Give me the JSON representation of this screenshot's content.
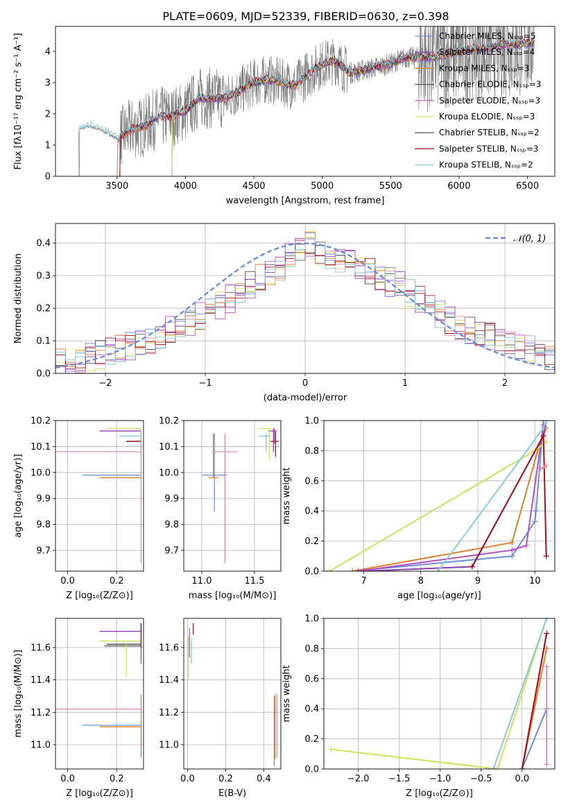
{
  "figure_title": "PLATE=0609, MJD=52339, FIBERID=0630, z=0.398",
  "colors": {
    "chabrier_miles": "#6b8fd6",
    "salpeter_miles": "#8a3fae",
    "kroupa_miles": "#e07e27",
    "chabrier_elodie": "#555555",
    "salpeter_elodie": "#b04fc0",
    "kroupa_elodie": "#cfe05a",
    "chabrier_stelib": "#3a3a3a",
    "salpeter_stelib": "#a0101a",
    "kroupa_stelib": "#86c9d8",
    "data": "#808080",
    "normal_curve": "#6a8fd8",
    "grid": "#b0b0b0"
  },
  "chart_data": [
    {
      "id": "spectrum",
      "type": "line",
      "title": "PLATE=0609, MJD=52339, FIBERID=0630, z=0.398",
      "xlabel": "wavelength [Angstrom, rest frame]",
      "ylabel": "Flux [fλ10⁻¹⁷ erg cm⁻² s⁻¹ A⁻¹]",
      "xlim": [
        3050,
        6700
      ],
      "ylim": [
        0,
        4.8
      ],
      "xticks": [
        3500,
        4000,
        4500,
        5000,
        5500,
        6000,
        6500
      ],
      "yticks": [
        0,
        1,
        2,
        3,
        4
      ],
      "grid": false,
      "legend_position": "top-right",
      "legend": [
        "Chabrier MILES, Nₛₛₚ=5",
        "Salpeter MILES, Nₛₛₚ=4",
        "Kroupa MILES, Nₛₛₚ=3",
        "Chabrier ELODIE, Nₛₛₚ=3",
        "Salpeter ELODIE, Nₛₛₚ=3",
        "Kroupa ELODIE, Nₛₛₚ=3",
        "Chabrier STELIB, Nₛₛₚ=2",
        "Salpeter STELIB, Nₛₛₚ=3",
        "Kroupa STELIB, Nₛₛₚ=2"
      ],
      "continuum": {
        "x": [
          3220,
          3300,
          3400,
          3500,
          3600,
          3700,
          3800,
          3900,
          4000,
          4100,
          4200,
          4300,
          4400,
          4500,
          4600,
          4700,
          4800,
          4900,
          5000,
          5100,
          5200,
          5300,
          5400,
          5500,
          5600,
          5700,
          5800,
          5900,
          6000,
          6100,
          6200,
          6300,
          6400,
          6550
        ],
        "y": [
          1.5,
          1.6,
          1.45,
          1.2,
          1.5,
          1.6,
          1.9,
          1.9,
          2.1,
          2.5,
          2.5,
          2.5,
          2.75,
          3.0,
          3.1,
          3.0,
          2.9,
          3.3,
          3.6,
          3.7,
          3.3,
          3.4,
          3.5,
          3.6,
          3.8,
          3.8,
          3.8,
          3.9,
          4.0,
          4.1,
          4.1,
          4.2,
          4.2,
          4.3
        ]
      },
      "data_range": [
        3220,
        6550
      ]
    },
    {
      "id": "residuals",
      "type": "line",
      "xlabel": "(data-model)/error",
      "ylabel": "Normed distribution",
      "xlim": [
        -2.5,
        2.5
      ],
      "ylim": [
        0,
        0.46
      ],
      "xticks": [
        -2,
        -1,
        0,
        1,
        2
      ],
      "yticks": [
        0.0,
        0.1,
        0.2,
        0.3,
        0.4
      ],
      "grid": true,
      "legend_position": "top-right",
      "legend": [
        "𝒩(0, 1)"
      ],
      "normal": {
        "mean": 0,
        "sigma": 1
      },
      "hist_envelope": {
        "x": [
          -2.5,
          -2.0,
          -1.5,
          -1.0,
          -0.5,
          -0.25,
          0.0,
          0.25,
          0.5,
          1.0,
          1.5,
          2.0,
          2.5
        ],
        "y": [
          0.03,
          0.06,
          0.11,
          0.18,
          0.28,
          0.33,
          0.4,
          0.36,
          0.33,
          0.26,
          0.15,
          0.1,
          0.05
        ]
      }
    },
    {
      "id": "age-vs-Z",
      "type": "scatter",
      "xlabel": "Z [log₁₀(Z/Z⊙)]",
      "ylabel": "age  [log₁₀(age/yr)]",
      "xlim": [
        -0.05,
        0.31
      ],
      "ylim": [
        9.62,
        10.2
      ],
      "xticks": [
        0.0,
        0.2
      ],
      "yticks": [
        9.7,
        9.8,
        9.9,
        10.0,
        10.1,
        10.2
      ],
      "grid": true,
      "points": [
        {
          "series": 0,
          "x": 0.3,
          "y": 9.99,
          "xerr": [
            0.24,
            0.0
          ],
          "yerr": [
            0.0,
            0.0
          ]
        },
        {
          "series": 1,
          "x": 0.3,
          "y": 10.16,
          "xerr": [
            0.17,
            0.0
          ],
          "yerr": [
            0.03,
            0.0
          ]
        },
        {
          "series": 2,
          "x": 0.3,
          "y": 9.98,
          "xerr": [
            0.17,
            0.0
          ],
          "yerr": [
            0.0,
            0.0
          ]
        },
        {
          "series": 3,
          "x": 0.3,
          "y": 10.16,
          "xerr": [
            0.17,
            0.0
          ],
          "yerr": [
            0.04,
            0.0
          ]
        },
        {
          "series": 4,
          "x": 0.3,
          "y": 10.16,
          "xerr": [
            0.17,
            0.0
          ],
          "yerr": [
            0.0,
            0.0
          ]
        },
        {
          "series": 5,
          "x": 0.3,
          "y": 10.17,
          "xerr": [
            0.14,
            0.0
          ],
          "yerr": [
            0.13,
            0.0
          ]
        },
        {
          "series": 6,
          "x": 0.3,
          "y": 10.12,
          "xerr": [
            0.06,
            0.0
          ],
          "yerr": [
            0.05,
            0.0
          ]
        },
        {
          "series": 7,
          "x": 0.3,
          "y": 10.12,
          "xerr": [
            0.06,
            0.0
          ],
          "yerr": [
            0.0,
            0.0
          ]
        },
        {
          "series": 8,
          "x": 0.3,
          "y": 10.14,
          "xerr": [
            0.09,
            0.0
          ],
          "yerr": [
            0.06,
            0.0
          ]
        },
        {
          "series": 9,
          "x": 0.3,
          "y": 10.08,
          "xerr": [
            0.35,
            0.0
          ],
          "yerr": [
            0.43,
            0.0
          ]
        }
      ]
    },
    {
      "id": "age-vs-mass",
      "type": "scatter",
      "xlabel": "mass [log₁₀(M/M⊙)]",
      "ylabel": "",
      "xlim": [
        10.83,
        11.75
      ],
      "ylim": [
        9.62,
        10.2
      ],
      "xticks": [
        11.0,
        11.5
      ],
      "yticks": [
        9.7,
        9.8,
        9.9,
        10.0,
        10.1,
        10.2
      ],
      "grid": true,
      "points": [
        {
          "series": 0,
          "x": 11.12,
          "y": 9.99,
          "xerr": [
            0.12,
            0.12
          ],
          "yerr": [
            0.14,
            0.16
          ]
        },
        {
          "series": 2,
          "x": 11.11,
          "y": 9.98,
          "xerr": [
            0.05,
            0.05
          ],
          "yerr": [
            0.0,
            0.17
          ]
        },
        {
          "series": 9,
          "x": 11.22,
          "y": 10.08,
          "xerr": [
            0.12,
            0.12
          ],
          "yerr": [
            0.43,
            0.07
          ]
        },
        {
          "series": 1,
          "x": 11.68,
          "y": 10.16,
          "xerr": [
            0.05,
            0.02
          ],
          "yerr": [
            0.08,
            0.01
          ]
        },
        {
          "series": 5,
          "x": 11.64,
          "y": 10.17,
          "xerr": [
            0.1,
            0.04
          ],
          "yerr": [
            0.12,
            0.0
          ]
        },
        {
          "series": 7,
          "x": 11.7,
          "y": 10.12,
          "xerr": [
            0.05,
            0.03
          ],
          "yerr": [
            0.06,
            0.04
          ]
        },
        {
          "series": 8,
          "x": 11.61,
          "y": 10.14,
          "xerr": [
            0.07,
            0.04
          ],
          "yerr": [
            0.06,
            0.01
          ]
        },
        {
          "series": 4,
          "x": 11.69,
          "y": 10.16,
          "xerr": [
            0.04,
            0.02
          ],
          "yerr": [
            0.05,
            0.01
          ]
        }
      ]
    },
    {
      "id": "massweight-vs-age",
      "type": "line",
      "xlabel": "age  [log₁₀(age/yr)]",
      "ylabel": "mass weight",
      "xlim": [
        6.3,
        10.35
      ],
      "ylim": [
        0.0,
        1.0
      ],
      "xticks": [
        7,
        8,
        9,
        10
      ],
      "yticks": [
        0.0,
        0.2,
        0.4,
        0.6,
        0.8,
        1.0
      ],
      "grid": true,
      "series": [
        {
          "series": 0,
          "x": [
            6.8,
            9.6,
            10.0,
            10.02,
            10.15
          ],
          "y": [
            0.0,
            0.1,
            0.33,
            0.4,
            1.0
          ]
        },
        {
          "series": 2,
          "x": [
            6.8,
            9.6,
            10.05,
            10.2
          ],
          "y": [
            0.0,
            0.19,
            0.8,
            0.95
          ]
        },
        {
          "series": 1,
          "x": [
            7.0,
            8.9,
            10.15,
            10.2
          ],
          "y": [
            0.0,
            0.03,
            0.9,
            1.0
          ]
        },
        {
          "series": 4,
          "x": [
            6.9,
            9.6,
            9.85,
            10.15
          ],
          "y": [
            0.0,
            0.14,
            0.17,
            0.97
          ]
        },
        {
          "series": 5,
          "x": [
            6.4,
            10.0,
            10.2
          ],
          "y": [
            0.0,
            0.8,
            0.86
          ]
        },
        {
          "series": 8,
          "x": [
            8.3,
            10.15,
            10.2
          ],
          "y": [
            0.0,
            0.95,
            1.0
          ]
        },
        {
          "series": 7,
          "x": [
            8.9,
            10.15,
            10.2
          ],
          "y": [
            0.03,
            0.9,
            0.1
          ]
        },
        {
          "series": 9,
          "x": [
            10.1,
            10.2
          ],
          "y": [
            0.68,
            0.7
          ]
        }
      ]
    },
    {
      "id": "mass-vs-Z",
      "type": "scatter",
      "xlabel": "Z [log₁₀(Z/Z⊙)]",
      "ylabel": "mass [log₁₀(M/M⊙)]",
      "xlim": [
        -0.05,
        0.31
      ],
      "ylim": [
        10.85,
        11.78
      ],
      "xticks": [
        0.0,
        0.2
      ],
      "yticks": [
        11.0,
        11.2,
        11.4,
        11.6
      ],
      "grid": true,
      "points": [
        {
          "series": 0,
          "x": 0.3,
          "y": 11.12,
          "xerr": [
            0.24,
            0.0
          ],
          "yerr": [
            0.2,
            0.0
          ]
        },
        {
          "series": 2,
          "x": 0.3,
          "y": 11.11,
          "xerr": [
            0.17,
            0.0
          ],
          "yerr": [
            0.12,
            0.2
          ]
        },
        {
          "series": 9,
          "x": 0.3,
          "y": 11.22,
          "xerr": [
            0.35,
            0.0
          ],
          "yerr": [
            0.0,
            0.0
          ]
        },
        {
          "series": 1,
          "x": 0.3,
          "y": 11.7,
          "xerr": [
            0.17,
            0.0
          ],
          "yerr": [
            0.2,
            0.05
          ]
        },
        {
          "series": 5,
          "x": 0.3,
          "y": 11.64,
          "xerr": [
            0.17,
            0.0
          ],
          "yerr": [
            0.0,
            0.0
          ]
        },
        {
          "series": 6,
          "x": 0.3,
          "y": 11.62,
          "xerr": [
            0.14,
            0.0
          ],
          "yerr": [
            0.0,
            0.0
          ]
        },
        {
          "series": 3,
          "x": 0.3,
          "y": 11.61,
          "xerr": [
            0.15,
            0.0
          ],
          "yerr": [
            0.0,
            0.0
          ]
        },
        {
          "series": 10,
          "x": 0.24,
          "y": 11.62,
          "xerr": [
            0.0,
            0.0
          ],
          "yerr": [
            0.2,
            0.0
          ]
        },
        {
          "series": 7,
          "x": 0.3,
          "y": 11.68,
          "xerr": [
            0.0,
            0.0
          ],
          "yerr": [
            0.08,
            0.07
          ]
        }
      ]
    },
    {
      "id": "mass-vs-ebv",
      "type": "scatter",
      "xlabel": "E(B-V)",
      "ylabel": "",
      "xlim": [
        -0.02,
        0.49
      ],
      "ylim": [
        10.85,
        11.78
      ],
      "xticks": [
        0.0,
        0.2,
        0.4
      ],
      "yticks": [
        11.0,
        11.2,
        11.4,
        11.6
      ],
      "grid": true,
      "points": [
        {
          "series": 5,
          "x": 0.005,
          "y": 11.55,
          "xerr": [
            0.0,
            0.0
          ],
          "yerr": [
            0.14,
            0.12
          ]
        },
        {
          "series": 7,
          "x": 0.03,
          "y": 11.68,
          "xerr": [
            0.0,
            0.0
          ],
          "yerr": [
            0.0,
            0.07
          ]
        },
        {
          "series": 4,
          "x": 0.01,
          "y": 11.62,
          "xerr": [
            0.0,
            0.0
          ],
          "yerr": [
            0.08,
            0.1
          ]
        },
        {
          "series": 8,
          "x": 0.02,
          "y": 11.58,
          "xerr": [
            0.0,
            0.0
          ],
          "yerr": [
            0.08,
            0.08
          ]
        },
        {
          "series": 0,
          "x": 0.455,
          "y": 11.12,
          "xerr": [
            0.0,
            0.0
          ],
          "yerr": [
            0.25,
            0.18
          ]
        },
        {
          "series": 2,
          "x": 0.46,
          "y": 11.11,
          "xerr": [
            0.0,
            0.0
          ],
          "yerr": [
            0.2,
            0.2
          ]
        },
        {
          "series": 9,
          "x": 0.47,
          "y": 11.12,
          "xerr": [
            0.0,
            0.0
          ],
          "yerr": [
            0.2,
            0.2
          ]
        }
      ]
    },
    {
      "id": "massweight-vs-Z",
      "type": "line",
      "xlabel": "Z [log₁₀(Z/Z⊙)]",
      "ylabel": "mass weight",
      "xlim": [
        -2.42,
        0.4
      ],
      "ylim": [
        0.0,
        1.0
      ],
      "xticks": [
        -2.0,
        -1.5,
        -1.0,
        -0.5,
        0.0
      ],
      "yticks": [
        0.0,
        0.2,
        0.4,
        0.6,
        0.8,
        1.0
      ],
      "grid": true,
      "series": [
        {
          "series": 5,
          "x": [
            -2.33,
            -0.3,
            0.3
          ],
          "y": [
            0.13,
            0.0,
            1.0
          ]
        },
        {
          "series": 8,
          "x": [
            -0.35,
            0.3
          ],
          "y": [
            0.0,
            1.0
          ]
        },
        {
          "series": 0,
          "x": [
            0.0,
            0.3
          ],
          "y": [
            0.0,
            0.4
          ]
        },
        {
          "series": 2,
          "x": [
            0.0,
            0.3
          ],
          "y": [
            0.0,
            0.8
          ]
        },
        {
          "series": 1,
          "x": [
            0.0,
            0.3
          ],
          "y": [
            0.0,
            0.9
          ]
        },
        {
          "series": 7,
          "x": [
            0.0,
            0.3
          ],
          "y": [
            0.0,
            0.9
          ]
        },
        {
          "series": 9,
          "x": [
            0.3,
            0.3
          ],
          "y": [
            0.03,
            0.68
          ]
        }
      ]
    }
  ]
}
